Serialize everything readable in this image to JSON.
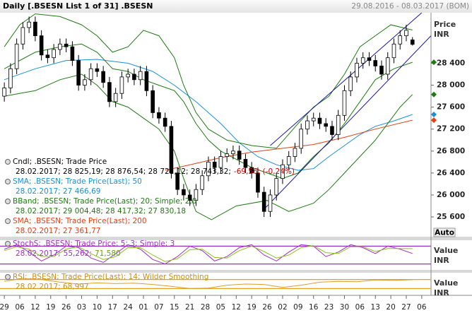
{
  "header": {
    "title": "Daily [.BSESN List 1 of 31] .BSESN",
    "range": "29.08.2016 - 08.03.2017 (BOM)",
    "auto": "Auto"
  },
  "chart_data": [
    {
      "type": "candlestick",
      "axis_label": [
        "Price",
        "INR"
      ],
      "xlim": [
        -1.4,
        138
      ],
      "ylim": [
        25240,
        29320
      ],
      "yticks": [
        {
          "value": 28400,
          "label": "28 400"
        },
        {
          "value": 28000,
          "label": "28 000"
        },
        {
          "value": 27600,
          "label": "27 600"
        },
        {
          "value": 27200,
          "label": "27 200"
        },
        {
          "value": 26800,
          "label": "26 800"
        },
        {
          "value": 26400,
          "label": "26 400"
        },
        {
          "value": 26000,
          "label": "26 000"
        },
        {
          "value": 25600,
          "label": "25 600"
        }
      ],
      "x": [
        0,
        2,
        4,
        6,
        8,
        10,
        12,
        14,
        16,
        18,
        20,
        22,
        24,
        26,
        28,
        30,
        32,
        34,
        36,
        38,
        40,
        42,
        44,
        46,
        48,
        50,
        52,
        54,
        56,
        58,
        60,
        62,
        64,
        66,
        68,
        70,
        72,
        74,
        76,
        78,
        80,
        82,
        84,
        86,
        88,
        90,
        92,
        94,
        96,
        98,
        100,
        102,
        104,
        106,
        108,
        110,
        112,
        114,
        116,
        118,
        120,
        122,
        124,
        126,
        128,
        130,
        132
      ],
      "open": [
        27800,
        27950,
        28300,
        28750,
        29050,
        29150,
        28900,
        28550,
        28500,
        28650,
        28750,
        28700,
        28450,
        28000,
        28100,
        28300,
        28250,
        28050,
        27700,
        27850,
        28150,
        28200,
        28100,
        28250,
        27900,
        27500,
        27400,
        27250,
        26400,
        26100,
        26000,
        25900,
        26100,
        26350,
        26600,
        26500,
        26700,
        26750,
        26800,
        26650,
        26500,
        26400,
        26050,
        25700,
        26000,
        26300,
        26550,
        26700,
        26850,
        27200,
        27350,
        27400,
        27300,
        27250,
        27100,
        27450,
        27900,
        28150,
        28400,
        28500,
        28450,
        28350,
        28200,
        28500,
        28750,
        28900,
        28825.19
      ],
      "high": [
        28050,
        28400,
        28850,
        29150,
        29250,
        29250,
        29000,
        28650,
        28750,
        28850,
        28850,
        28800,
        28550,
        28200,
        28400,
        28400,
        28350,
        28150,
        27950,
        28250,
        28300,
        28300,
        28350,
        28350,
        28000,
        27600,
        27500,
        27350,
        26500,
        26200,
        26100,
        26200,
        26450,
        26700,
        26700,
        26800,
        26850,
        26900,
        26900,
        26750,
        26600,
        26500,
        26150,
        26100,
        26400,
        26650,
        26800,
        26950,
        27300,
        27450,
        27500,
        27500,
        27400,
        27350,
        27550,
        28000,
        28250,
        28500,
        28600,
        28600,
        28550,
        28450,
        28600,
        28850,
        29000,
        29100,
        28876.54
      ],
      "low": [
        27700,
        27850,
        28200,
        28650,
        28950,
        28800,
        28450,
        28400,
        28400,
        28550,
        28600,
        28350,
        27900,
        27900,
        28000,
        28150,
        27950,
        27600,
        27600,
        27750,
        28050,
        28000,
        28000,
        27800,
        27400,
        27300,
        27150,
        26300,
        26000,
        25900,
        25800,
        25800,
        26000,
        26250,
        26400,
        26400,
        26600,
        26650,
        26550,
        26400,
        26300,
        25950,
        25600,
        25600,
        25900,
        26200,
        26450,
        26600,
        26750,
        27100,
        27250,
        27200,
        27150,
        27000,
        27000,
        27350,
        27800,
        28050,
        28300,
        28350,
        28250,
        28100,
        28100,
        28400,
        28650,
        28800,
        28721.12
      ],
      "close": [
        27950,
        28300,
        28750,
        29050,
        29150,
        28900,
        28550,
        28500,
        28650,
        28750,
        28700,
        28450,
        28000,
        28100,
        28300,
        28250,
        28050,
        27700,
        27850,
        28150,
        28200,
        28100,
        28250,
        27900,
        27500,
        27400,
        27250,
        26400,
        26100,
        26000,
        25900,
        26100,
        26350,
        26600,
        26500,
        26700,
        26750,
        26800,
        26650,
        26500,
        26400,
        26050,
        25700,
        26000,
        26300,
        26550,
        26700,
        26850,
        27200,
        27350,
        27400,
        27300,
        27250,
        27100,
        27450,
        27900,
        28150,
        28400,
        28500,
        28450,
        28350,
        28200,
        28500,
        28750,
        28900,
        29000,
        28743.32
      ],
      "up_color": "#ffffff",
      "down_color": "#000000",
      "series": [
        {
          "color": "#1a8fd6",
          "x": [
            0,
            10,
            20,
            30,
            40,
            48,
            55,
            62,
            70,
            76,
            82,
            88,
            95,
            100,
            105,
            110,
            115,
            120,
            126,
            132
          ],
          "values": [
            28100,
            28300,
            28450,
            28470,
            28400,
            28250,
            28000,
            27700,
            27300,
            26950,
            26700,
            26550,
            26450,
            26480,
            26700,
            26900,
            27100,
            27250,
            27350,
            27466.69
          ]
        },
        {
          "color": "#e0401a",
          "x": [
            52,
            60,
            70,
            80,
            90,
            100,
            110,
            120,
            132
          ],
          "values": [
            26450,
            26550,
            26680,
            26780,
            26850,
            26920,
            27050,
            27200,
            27361.77
          ]
        },
        {
          "color": "#1e7a12",
          "x": [
            0,
            5,
            10,
            18,
            25,
            30,
            35,
            40,
            45,
            50,
            55,
            58,
            62,
            66,
            72,
            80,
            88,
            95,
            100,
            105,
            110,
            115,
            120,
            125,
            132
          ],
          "values": [
            28700,
            29100,
            29300,
            29250,
            29100,
            28900,
            28600,
            28700,
            29000,
            28900,
            28500,
            28000,
            27500,
            27200,
            27000,
            26900,
            26850,
            27300,
            27600,
            27800,
            28200,
            28700,
            28900,
            29100,
            29004.48
          ]
        },
        {
          "color": "#1e7a12",
          "x": [
            0,
            10,
            18,
            25,
            30,
            35,
            40,
            45,
            50,
            55,
            58,
            62,
            66,
            70,
            75,
            80,
            85,
            90,
            95,
            100,
            105,
            110,
            115,
            120,
            126,
            132
          ],
          "values": [
            28300,
            28600,
            28700,
            28750,
            28600,
            28300,
            28250,
            28100,
            28000,
            27900,
            27700,
            27300,
            27000,
            26800,
            26650,
            26500,
            26400,
            26300,
            26400,
            26700,
            26950,
            27300,
            27700,
            28100,
            28300,
            28417.32
          ]
        },
        {
          "color": "#1e7a12",
          "x": [
            0,
            10,
            18,
            25,
            30,
            35,
            40,
            45,
            50,
            55,
            58,
            62,
            67,
            75,
            85,
            92,
            100,
            105,
            110,
            115,
            120,
            124,
            128,
            132
          ],
          "values": [
            27800,
            27900,
            28100,
            28200,
            28000,
            27700,
            27600,
            27400,
            27200,
            26800,
            26300,
            25700,
            25550,
            25800,
            25900,
            25700,
            25850,
            26100,
            26400,
            26700,
            27000,
            27300,
            27600,
            27830.18
          ]
        }
      ],
      "trendlines": [
        {
          "color": "#1a1aa0",
          "x": [
            86,
            135
          ],
          "values": [
            26900,
            29320
          ]
        },
        {
          "color": "#1a1aa0",
          "x": [
            84,
            138
          ],
          "values": [
            25740,
            28900
          ]
        }
      ],
      "legend": [
        {
          "title": "Cndl; .BSESN; Trade Price",
          "text": "28.02.2017; 28 825,19; 28 876,54; 28 721,12; 28 743,32;",
          "change": "-69,56; (-0,24%)",
          "color": "#000000",
          "change_color": "#d00000"
        },
        {
          "title": "SMA; .BSESN; Trade Price(Last); 50",
          "text": "28.02.2017; 27 466,69",
          "color": "#1a8fd6"
        },
        {
          "title": "BBand; .BSESN; Trade Price(Last); 20; Simple; 2,0",
          "text": "28.02.2017; 29 004,48; 28 417,32; 27 830,18",
          "color": "#1e7a12"
        },
        {
          "title": "SMA; .BSESN; Trade Price(Last); 200",
          "text": "28.02.2017; 27 361,77",
          "color": "#e0401a"
        }
      ]
    },
    {
      "type": "line",
      "axis_label": [
        "Value",
        "INR"
      ],
      "xlim": [
        -1.4,
        138
      ],
      "ylim": [
        0,
        100
      ],
      "levels": [
        80,
        20
      ],
      "level_color": "#a030c0",
      "series": [
        {
          "color": "#a030c0",
          "x": [
            0,
            4,
            8,
            12,
            16,
            20,
            24,
            28,
            32,
            36,
            40,
            44,
            48,
            52,
            56,
            60,
            64,
            68,
            72,
            76,
            80,
            84,
            88,
            92,
            96,
            100,
            104,
            108,
            112,
            116,
            120,
            124,
            128,
            132
          ],
          "values": [
            70,
            85,
            60,
            30,
            50,
            80,
            75,
            40,
            25,
            55,
            85,
            70,
            35,
            20,
            45,
            80,
            65,
            30,
            45,
            75,
            85,
            50,
            30,
            60,
            85,
            80,
            45,
            60,
            85,
            75,
            55,
            80,
            70,
            55.262
          ]
        },
        {
          "color": "#8cc020",
          "x": [
            0,
            4,
            8,
            12,
            16,
            20,
            24,
            28,
            32,
            36,
            40,
            44,
            48,
            52,
            56,
            60,
            64,
            68,
            72,
            76,
            80,
            84,
            88,
            92,
            96,
            100,
            104,
            108,
            112,
            116,
            120,
            124,
            128,
            132
          ],
          "values": [
            65,
            78,
            70,
            45,
            45,
            70,
            78,
            55,
            35,
            45,
            75,
            75,
            50,
            28,
            38,
            68,
            70,
            42,
            40,
            65,
            80,
            62,
            40,
            50,
            75,
            82,
            58,
            55,
            78,
            78,
            62,
            72,
            72,
            71.58
          ]
        }
      ],
      "legend": [
        {
          "title": "StochS; .BSESN; Trade Price; 5; 3; Simple; 3",
          "text": "28.02.2017;",
          "color": "#a030c0",
          "parts": [
            {
              "text": "55,262;",
              "color": "#a030c0"
            },
            {
              "text": "71,580",
              "color": "#6aa010"
            }
          ]
        }
      ]
    },
    {
      "type": "line",
      "axis_label": [
        "Value",
        "INR"
      ],
      "xlim": [
        -1.4,
        138
      ],
      "ylim": [
        0,
        100
      ],
      "levels": [
        70,
        30
      ],
      "level_color": "#e8a020",
      "series": [
        {
          "color": "#d8a030",
          "x": [
            0,
            6,
            12,
            18,
            24,
            30,
            36,
            42,
            48,
            54,
            60,
            66,
            72,
            78,
            84,
            90,
            96,
            102,
            108,
            114,
            120,
            126,
            132
          ],
          "values": [
            62,
            75,
            70,
            58,
            50,
            55,
            52,
            54,
            48,
            40,
            30,
            32,
            45,
            50,
            48,
            35,
            45,
            58,
            62,
            60,
            68,
            66,
            68.997
          ]
        }
      ],
      "legend": [
        {
          "title": "RSI; .BSESN; Trade Price(Last); 14; Wilder Smoothing",
          "text": "28.02.2017; 68,997",
          "color": "#c89010"
        }
      ],
      "xticks": [
        {
          "value": 0,
          "label": "29"
        },
        {
          "value": 5,
          "label": "06"
        },
        {
          "value": 10,
          "label": "12"
        },
        {
          "value": 15,
          "label": "19"
        },
        {
          "value": 20,
          "label": "26"
        },
        {
          "value": 25,
          "label": "03"
        },
        {
          "value": 30,
          "label": "10"
        },
        {
          "value": 35,
          "label": "17"
        },
        {
          "value": 40,
          "label": "24"
        },
        {
          "value": 45,
          "label": "01"
        },
        {
          "value": 50,
          "label": "07"
        },
        {
          "value": 55,
          "label": "15"
        },
        {
          "value": 60,
          "label": "21"
        },
        {
          "value": 65,
          "label": "28"
        },
        {
          "value": 70,
          "label": "05"
        },
        {
          "value": 75,
          "label": "12"
        },
        {
          "value": 80,
          "label": "19"
        },
        {
          "value": 85,
          "label": "26"
        },
        {
          "value": 90,
          "label": "02"
        },
        {
          "value": 95,
          "label": "09"
        },
        {
          "value": 100,
          "label": "16"
        },
        {
          "value": 105,
          "label": "23"
        },
        {
          "value": 110,
          "label": "30"
        },
        {
          "value": 115,
          "label": "06"
        },
        {
          "value": 120,
          "label": "13"
        },
        {
          "value": 125,
          "label": "20"
        },
        {
          "value": 130,
          "label": "27"
        },
        {
          "value": 135,
          "label": "06"
        }
      ]
    }
  ]
}
